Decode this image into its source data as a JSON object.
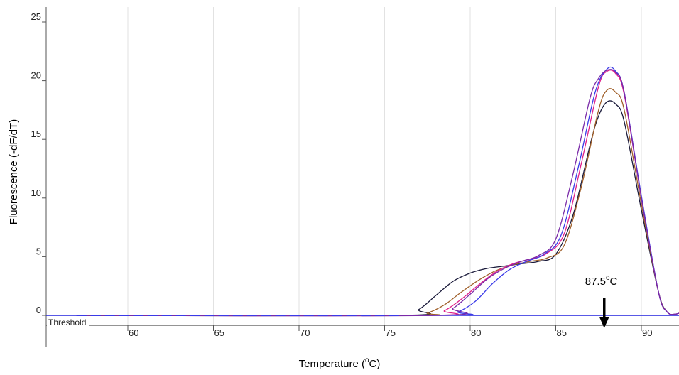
{
  "chart_data": {
    "type": "line",
    "xlabel": "Temperature (",
    "xlabel_sup": "o",
    "xlabel_end": "C)",
    "ylabel": "Fluorescence  (-dF/dT)",
    "xlim": [
      55.5,
      92.5
    ],
    "ylim": [
      -0.5,
      26
    ],
    "x_ticks": [
      60,
      65,
      70,
      75,
      80,
      85,
      90
    ],
    "x_tick_labels": [
      "60",
      "65",
      "70",
      "75",
      "80",
      "85",
      "90"
    ],
    "y_ticks": [
      0,
      5,
      10,
      15,
      20,
      25
    ],
    "y_tick_labels": [
      "0",
      "5",
      "10",
      "15",
      "20",
      "25"
    ],
    "grid": "vertical",
    "threshold": {
      "label": "Threshold",
      "value": 0,
      "color": "#2222dd"
    },
    "annotation": {
      "text_main": "87.5",
      "text_sup": "o",
      "text_end": "C",
      "x": 87.5
    },
    "series": [
      {
        "color": "#1a1a3a",
        "x": [
          57,
          76,
          77,
          78,
          79,
          80,
          81,
          82,
          83,
          84,
          85,
          86,
          87,
          87.5,
          88,
          88.5,
          89,
          90,
          91,
          91.5,
          92,
          92.5
        ],
        "y": [
          0,
          0,
          0.5,
          1.7,
          2.9,
          3.6,
          4.0,
          4.2,
          4.4,
          4.6,
          5.2,
          8.5,
          14.5,
          17,
          18.2,
          18.0,
          16.5,
          9.0,
          2.0,
          0.3,
          0.1,
          0.4
        ]
      },
      {
        "color": "#a0602a",
        "x": [
          57,
          76.5,
          77.5,
          78.5,
          79.5,
          80.5,
          81.5,
          82.5,
          83.5,
          84.5,
          85.5,
          86.5,
          87.5,
          88,
          88.5,
          89,
          90,
          91,
          91.5,
          92,
          92.5
        ],
        "y": [
          0,
          0,
          0.2,
          0.9,
          2.0,
          3.0,
          3.8,
          4.3,
          4.6,
          4.9,
          6.0,
          11.0,
          17.5,
          19.2,
          19.0,
          17.5,
          9.5,
          2.0,
          0.3,
          0.1,
          0.4
        ]
      },
      {
        "color": "#e0208a",
        "x": [
          57,
          77.5,
          78.5,
          79.5,
          80.5,
          81.5,
          82.5,
          83.5,
          84.5,
          85.5,
          86.5,
          87.5,
          88,
          88.5,
          89,
          90,
          91,
          91.5,
          92,
          92.5
        ],
        "y": [
          0,
          0,
          0.4,
          1.4,
          2.6,
          3.7,
          4.4,
          4.8,
          5.3,
          7.0,
          13.0,
          19.5,
          20.8,
          20.6,
          18.8,
          10.0,
          2.0,
          0.3,
          0.1,
          0.4
        ]
      },
      {
        "color": "#3a3ae8",
        "x": [
          57,
          78.3,
          79.3,
          80.3,
          81.3,
          82.3,
          83.3,
          84.3,
          85.3,
          86.3,
          87.3,
          88,
          88.5,
          89,
          90,
          91,
          91.5,
          92,
          92.5
        ],
        "y": [
          0,
          0,
          0.3,
          1.2,
          2.7,
          3.9,
          4.6,
          5.2,
          6.8,
          12.5,
          19.0,
          21.0,
          20.8,
          19.0,
          10.2,
          2.0,
          0.3,
          0.1,
          0.4
        ]
      },
      {
        "color": "#7a2aa8",
        "x": [
          57,
          78,
          79,
          80,
          81,
          82,
          83,
          84,
          85,
          86,
          87,
          87.5,
          88,
          88.5,
          89,
          90,
          91,
          91.5,
          92,
          92.5
        ],
        "y": [
          0,
          0,
          0.6,
          1.8,
          3.1,
          4.0,
          4.6,
          5.1,
          6.5,
          12.0,
          18.5,
          20.2,
          20.9,
          20.7,
          19.0,
          10.0,
          2.0,
          0.3,
          0.1,
          0.4
        ]
      }
    ]
  }
}
